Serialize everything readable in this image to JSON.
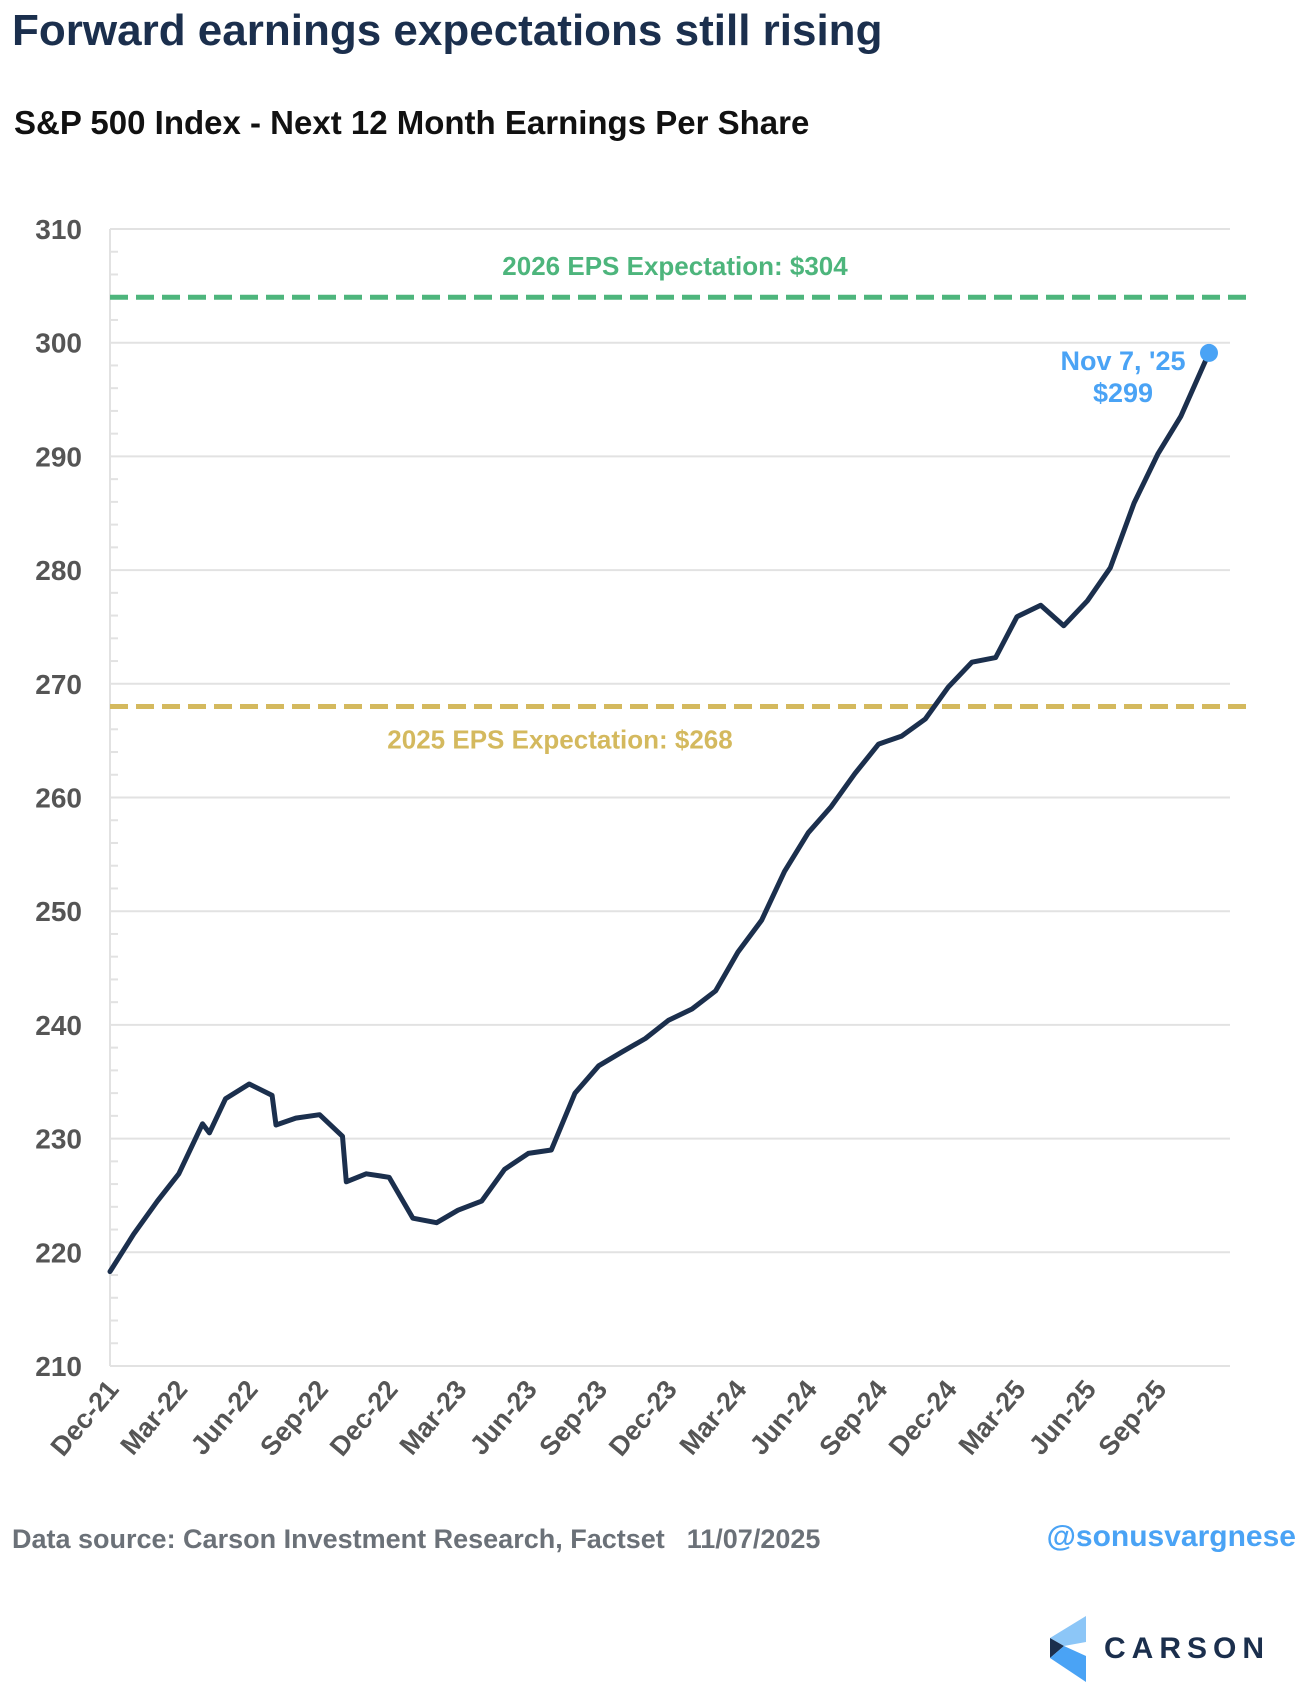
{
  "header": {
    "title": "Forward earnings expectations still rising",
    "subtitle": "S&P 500 Index - Next 12 Month Earnings Per Share"
  },
  "footer": {
    "source": "Data source: Carson Investment Research, Factset",
    "date": "11/07/2025",
    "handle": "@sonusvargnese",
    "logo_text": "CARSON"
  },
  "colors": {
    "line": "#1b2f4d",
    "eps_2026": "#4db57c",
    "eps_2025": "#d4b95e",
    "annotation": "#4aa3f5",
    "grid": "#e2e2e2",
    "axis_text": "#555555"
  },
  "chart_data": {
    "type": "line",
    "title": "S&P 500 Index - Next 12 Month Earnings Per Share",
    "xlabel": "",
    "ylabel": "",
    "ylim": [
      210,
      310
    ],
    "yticks": [
      210,
      220,
      230,
      240,
      250,
      260,
      270,
      280,
      290,
      300,
      310
    ],
    "xtick_labels": [
      "Dec-21",
      "Mar-22",
      "Jun-22",
      "Sep-22",
      "Dec-22",
      "Mar-23",
      "Jun-23",
      "Sep-23",
      "Dec-23",
      "Mar-24",
      "Jun-24",
      "Sep-24",
      "Dec-24",
      "Mar-25",
      "Jun-25",
      "Sep-25"
    ],
    "xtick_dates": [
      "2021-12-01",
      "2022-03-01",
      "2022-06-01",
      "2022-09-01",
      "2022-12-01",
      "2023-03-01",
      "2023-06-01",
      "2023-09-01",
      "2023-12-01",
      "2024-03-01",
      "2024-06-01",
      "2024-09-01",
      "2024-12-01",
      "2025-03-01",
      "2025-06-01",
      "2025-09-01"
    ],
    "grid": true,
    "series": [
      {
        "x": [
          "2021-12-01",
          "2022-01-01",
          "2022-02-01",
          "2022-03-01",
          "2022-04-01",
          "2022-04-10",
          "2022-05-01",
          "2022-06-01",
          "2022-07-01",
          "2022-07-06",
          "2022-08-01",
          "2022-09-01",
          "2022-10-01",
          "2022-10-06",
          "2022-11-01",
          "2022-12-01",
          "2023-01-01",
          "2023-02-01",
          "2023-03-01",
          "2023-04-01",
          "2023-05-01",
          "2023-06-01",
          "2023-07-01",
          "2023-08-01",
          "2023-09-01",
          "2023-10-01",
          "2023-11-01",
          "2023-12-01",
          "2024-01-01",
          "2024-02-01",
          "2024-03-01",
          "2024-04-01",
          "2024-05-01",
          "2024-06-01",
          "2024-07-01",
          "2024-08-01",
          "2024-09-01",
          "2024-10-01",
          "2024-11-01",
          "2024-12-01",
          "2025-01-01",
          "2025-02-01",
          "2025-03-01",
          "2025-04-01",
          "2025-05-01",
          "2025-06-01",
          "2025-07-01",
          "2025-08-01",
          "2025-09-01",
          "2025-10-01",
          "2025-11-07"
        ],
        "values": [
          218.3,
          221.6,
          224.5,
          226.9,
          231.3,
          230.5,
          233.5,
          234.8,
          233.8,
          231.2,
          231.8,
          232.1,
          230.2,
          226.2,
          226.9,
          226.6,
          223.0,
          222.6,
          223.7,
          224.5,
          227.3,
          228.7,
          229.0,
          234.0,
          236.4,
          237.6,
          238.8,
          240.4,
          241.4,
          243.0,
          246.4,
          249.2,
          253.5,
          256.9,
          259.2,
          262.1,
          264.7,
          265.4,
          266.9,
          269.7,
          271.9,
          272.3,
          275.9,
          276.9,
          275.1,
          277.3,
          280.2,
          285.9,
          290.2,
          293.5,
          299.1
        ]
      }
    ],
    "reference_lines": [
      {
        "label": "2026 EPS Expectation: $304",
        "value": 304,
        "color": "#4db57c"
      },
      {
        "label": "2025 EPS Expectation: $268",
        "value": 268,
        "color": "#d4b95e"
      }
    ],
    "annotation": {
      "line1": "Nov 7, '25",
      "line2": "$299",
      "date": "2025-11-07",
      "value": 299.1
    }
  }
}
